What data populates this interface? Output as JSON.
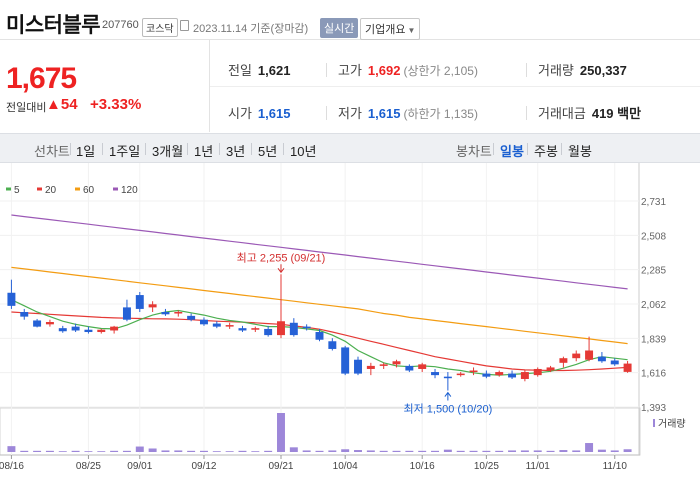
{
  "header": {
    "title": "미스터블루",
    "code": "207760",
    "market": "코스닥",
    "date": "2023.11.14 기준(장마감)",
    "realtime_label": "실시간",
    "overview_label": "기업개요"
  },
  "price": {
    "current": "1,675",
    "change_label": "전일대비",
    "change_arrow": "▲",
    "change_value": "54",
    "change_percent": "+3.33%"
  },
  "stats": {
    "prev_close_label": "전일",
    "prev_close": "1,621",
    "high_label": "고가",
    "high": "1,692",
    "high_limit": "(상한가 2,105)",
    "volume_label": "거래량",
    "volume": "250,337",
    "open_label": "시가",
    "open": "1,615",
    "low_label": "저가",
    "low": "1,615",
    "low_limit": "(하한가 1,135)",
    "trade_value_label": "거래대금",
    "trade_value": "419 백만"
  },
  "tabs": {
    "line_label": "선차트",
    "periods": [
      "1일",
      "1주일",
      "3개월",
      "1년",
      "3년",
      "5년",
      "10년"
    ],
    "candle_label": "봉차트",
    "candles": [
      "일봉",
      "주봉",
      "월봉"
    ],
    "active_candle": "일봉"
  },
  "chart_data": {
    "type": "candlestick",
    "legend": [
      {
        "name": "5",
        "color": "#4caf50"
      },
      {
        "name": "20",
        "color": "#e53935"
      },
      {
        "name": "60",
        "color": "#f39c12"
      },
      {
        "name": "120",
        "color": "#9b59b6"
      }
    ],
    "y_ticks": [
      "2,731",
      "2,508",
      "2,285",
      "2,062",
      "1,839",
      "1,616",
      "1,393"
    ],
    "ylim": [
      1393,
      2731
    ],
    "x_ticks": [
      "08/16",
      "08/25",
      "09/01",
      "09/12",
      "09/21",
      "10/04",
      "10/16",
      "10/25",
      "11/01",
      "11/10"
    ],
    "x_tick_index": [
      0,
      6,
      10,
      15,
      21,
      26,
      32,
      37,
      41,
      47
    ],
    "max_label": "최고 2,255 (09/21)",
    "min_label": "최저 1,500 (10/20)",
    "max_index": 21,
    "min_index": 34,
    "volume_label": "거래량",
    "candles": [
      [
        2135,
        2220,
        2030,
        2050
      ],
      [
        2010,
        2030,
        1960,
        1980
      ],
      [
        1955,
        1965,
        1910,
        1915
      ],
      [
        1930,
        1960,
        1915,
        1945
      ],
      [
        1905,
        1920,
        1875,
        1885
      ],
      [
        1915,
        1935,
        1880,
        1890
      ],
      [
        1895,
        1915,
        1870,
        1880
      ],
      [
        1880,
        1900,
        1870,
        1895
      ],
      [
        1890,
        1920,
        1870,
        1915
      ],
      [
        2040,
        2090,
        1950,
        1960
      ],
      [
        2120,
        2140,
        2010,
        2030
      ],
      [
        2040,
        2080,
        2010,
        2060
      ],
      [
        2010,
        2030,
        1985,
        1995
      ],
      [
        2005,
        2020,
        1980,
        2010
      ],
      [
        1985,
        2000,
        1950,
        1960
      ],
      [
        1960,
        1975,
        1920,
        1930
      ],
      [
        1935,
        1950,
        1905,
        1915
      ],
      [
        1920,
        1940,
        1900,
        1925
      ],
      [
        1905,
        1920,
        1880,
        1890
      ],
      [
        1895,
        1915,
        1880,
        1905
      ],
      [
        1900,
        1920,
        1850,
        1860
      ],
      [
        1860,
        2255,
        1840,
        1950
      ],
      [
        1940,
        1970,
        1850,
        1860
      ],
      [
        1915,
        1930,
        1890,
        1910
      ],
      [
        1880,
        1900,
        1820,
        1830
      ],
      [
        1820,
        1840,
        1760,
        1770
      ],
      [
        1780,
        1790,
        1600,
        1610
      ],
      [
        1700,
        1720,
        1600,
        1610
      ],
      [
        1640,
        1680,
        1600,
        1660
      ],
      [
        1660,
        1680,
        1640,
        1670
      ],
      [
        1670,
        1700,
        1650,
        1690
      ],
      [
        1660,
        1670,
        1620,
        1630
      ],
      [
        1640,
        1680,
        1620,
        1670
      ],
      [
        1620,
        1640,
        1580,
        1600
      ],
      [
        1590,
        1620,
        1500,
        1580
      ],
      [
        1600,
        1620,
        1590,
        1610
      ],
      [
        1620,
        1650,
        1600,
        1630
      ],
      [
        1610,
        1630,
        1580,
        1590
      ],
      [
        1600,
        1630,
        1590,
        1620
      ],
      [
        1610,
        1630,
        1575,
        1585
      ],
      [
        1575,
        1630,
        1560,
        1620
      ],
      [
        1600,
        1650,
        1590,
        1640
      ],
      [
        1630,
        1660,
        1620,
        1650
      ],
      [
        1680,
        1720,
        1650,
        1710
      ],
      [
        1710,
        1760,
        1690,
        1740
      ],
      [
        1700,
        1850,
        1690,
        1760
      ],
      [
        1720,
        1750,
        1680,
        1690
      ],
      [
        1695,
        1710,
        1660,
        1670
      ],
      [
        1621,
        1692,
        1615,
        1675
      ]
    ],
    "volumes": [
      15,
      3,
      3,
      3,
      2,
      3,
      2,
      2,
      3,
      3,
      14,
      9,
      4,
      4,
      3,
      3,
      2,
      2,
      3,
      2,
      3,
      100,
      12,
      4,
      3,
      4,
      7,
      5,
      4,
      3,
      3,
      3,
      3,
      3,
      6,
      3,
      3,
      3,
      3,
      4,
      4,
      4,
      3,
      5,
      4,
      23,
      6,
      4,
      7
    ],
    "ma": {
      "5": [
        2090,
        2050,
        2010,
        1980,
        1950,
        1930,
        1915,
        1903,
        1900,
        1925,
        1960,
        1990,
        2010,
        2020,
        2005,
        1990,
        1970,
        1955,
        1945,
        1930,
        1915,
        1915,
        1910,
        1900,
        1890,
        1860,
        1820,
        1760,
        1720,
        1680,
        1660,
        1655,
        1660,
        1655,
        1640,
        1630,
        1615,
        1605,
        1600,
        1605,
        1610,
        1615,
        1625,
        1645,
        1670,
        1700,
        1720,
        1710,
        1700
      ],
      "20": [
        2010,
        2005,
        2000,
        1995,
        1990,
        1985,
        1980,
        1975,
        1972,
        1970,
        1968,
        1966,
        1965,
        1963,
        1960,
        1955,
        1950,
        1947,
        1944,
        1940,
        1935,
        1930,
        1920,
        1910,
        1898,
        1880,
        1860,
        1840,
        1820,
        1800,
        1780,
        1760,
        1740,
        1720,
        1705,
        1690,
        1675,
        1660,
        1650,
        1640,
        1634,
        1632,
        1630,
        1630,
        1632,
        1635,
        1640,
        1645,
        1650
      ],
      "60": [
        2300,
        2290,
        2280,
        2270,
        2260,
        2250,
        2240,
        2230,
        2220,
        2210,
        2200,
        2190,
        2180,
        2170,
        2160,
        2150,
        2140,
        2130,
        2120,
        2110,
        2100,
        2090,
        2080,
        2070,
        2060,
        2050,
        2040,
        2030,
        2015,
        2000,
        1990,
        1975,
        1965,
        1955,
        1945,
        1935,
        1925,
        1915,
        1905,
        1895,
        1885,
        1875,
        1865,
        1855,
        1845,
        1835,
        1825,
        1815,
        1805
      ],
      "120": [
        2640,
        2630,
        2620,
        2610,
        2600,
        2590,
        2580,
        2570,
        2560,
        2550,
        2540,
        2530,
        2520,
        2510,
        2500,
        2490,
        2480,
        2470,
        2460,
        2450,
        2440,
        2430,
        2420,
        2410,
        2400,
        2390,
        2380,
        2370,
        2360,
        2350,
        2340,
        2330,
        2320,
        2310,
        2300,
        2290,
        2280,
        2270,
        2260,
        2250,
        2240,
        2230,
        2220,
        2210,
        2200,
        2190,
        2180,
        2170,
        2160
      ]
    }
  }
}
